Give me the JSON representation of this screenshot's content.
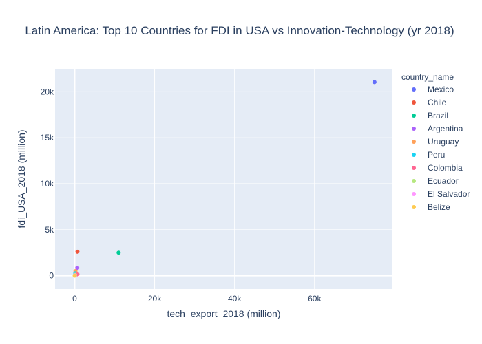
{
  "chart_data": {
    "type": "scatter",
    "title": "Latin America: Top 10 Countries for FDI in USA vs Innovation-Technology (yr 2018)",
    "xlabel": "tech_export_2018 (million)",
    "ylabel": "fdi_USA_2018 (million)",
    "xlim": [
      -4900,
      79500
    ],
    "ylim": [
      -1450,
      22500
    ],
    "xticks": [
      {
        "value": 0,
        "label": "0"
      },
      {
        "value": 20000,
        "label": "20k"
      },
      {
        "value": 40000,
        "label": "40k"
      },
      {
        "value": 60000,
        "label": "60k"
      }
    ],
    "yticks": [
      {
        "value": 0,
        "label": "0"
      },
      {
        "value": 5000,
        "label": "5k"
      },
      {
        "value": 10000,
        "label": "10k"
      },
      {
        "value": 15000,
        "label": "15k"
      },
      {
        "value": 20000,
        "label": "20k"
      }
    ],
    "grid": true,
    "legend_title": "country_name",
    "legend_position": "right",
    "series": [
      {
        "name": "Mexico",
        "color": "#636efa",
        "x": [
          75000
        ],
        "y": [
          21050
        ]
      },
      {
        "name": "Chile",
        "color": "#ef553b",
        "x": [
          700
        ],
        "y": [
          2600
        ]
      },
      {
        "name": "Brazil",
        "color": "#00cc96",
        "x": [
          11000
        ],
        "y": [
          2500
        ]
      },
      {
        "name": "Argentina",
        "color": "#ab63fa",
        "x": [
          650
        ],
        "y": [
          850
        ]
      },
      {
        "name": "Uruguay",
        "color": "#ffa15a",
        "x": [
          200
        ],
        "y": [
          500
        ]
      },
      {
        "name": "Peru",
        "color": "#19d3f3",
        "x": [
          150
        ],
        "y": [
          250
        ]
      },
      {
        "name": "Colombia",
        "color": "#ff6692",
        "x": [
          700
        ],
        "y": [
          150
        ]
      },
      {
        "name": "Ecuador",
        "color": "#b6e880",
        "x": [
          100
        ],
        "y": [
          80
        ]
      },
      {
        "name": "El Salvador",
        "color": "#ff97ff",
        "x": [
          50
        ],
        "y": [
          50
        ]
      },
      {
        "name": "Belize",
        "color": "#fecb52",
        "x": [
          10
        ],
        "y": [
          10
        ]
      }
    ]
  }
}
